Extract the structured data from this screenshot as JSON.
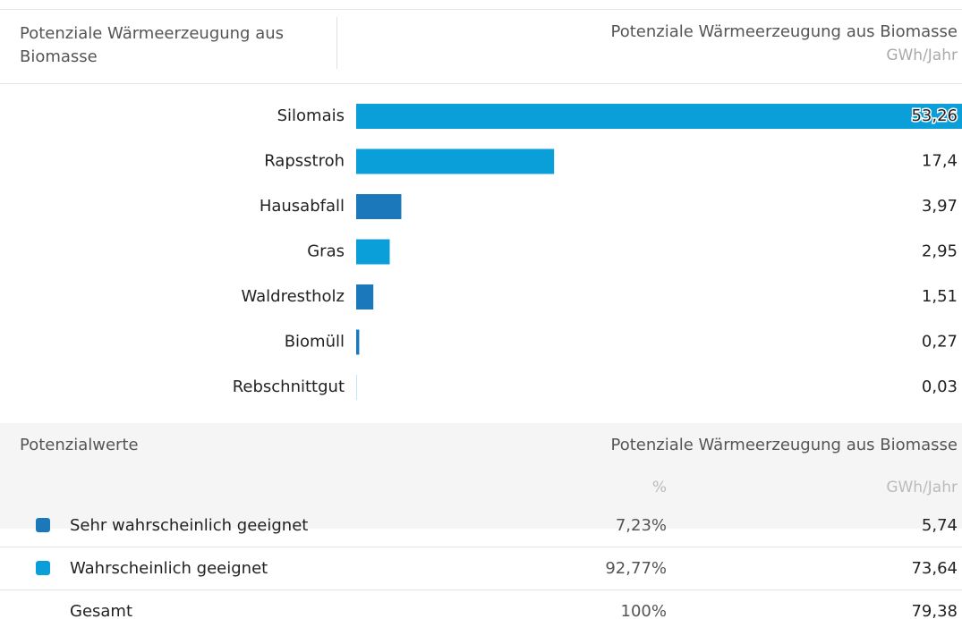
{
  "header": {
    "title": "Potenziale Wärmeerzeugung aus Biomasse",
    "column": "Potenziale Wärmeerzeugung aus Biomasse",
    "unit": "GWh/Jahr"
  },
  "chart_data": {
    "type": "bar",
    "orientation": "horizontal",
    "categories": [
      "Silomais",
      "Rapsstroh",
      "Hausabfall",
      "Gras",
      "Waldrestholz",
      "Biomüll",
      "Rebschnittgut"
    ],
    "values": [
      53.26,
      17.4,
      3.97,
      2.95,
      1.51,
      0.27,
      0.03
    ],
    "value_labels": [
      "53,26",
      "17,4",
      "3,97",
      "2,95",
      "1,51",
      "0,27",
      "0,03"
    ],
    "colors": [
      "#0a9fd9",
      "#0a9fd9",
      "#1b78bb",
      "#0a9fd9",
      "#1b78bb",
      "#1b78bb",
      "#0a9fd9"
    ]
  },
  "table": {
    "title": "Potenzialwerte",
    "column": "Potenziale Wärmeerzeugung aus Biomasse",
    "units": [
      "%",
      "GWh/Jahr"
    ],
    "rows": [
      {
        "color": "#1b78bb",
        "label": "Sehr wahrscheinlich geeignet",
        "percent": "7,23%",
        "value": "5,74"
      },
      {
        "color": "#0a9fd9",
        "label": "Wahrscheinlich geeignet",
        "percent": "92,77%",
        "value": "73,64"
      },
      {
        "label": "Gesamt",
        "percent": "100%",
        "value": "79,38"
      }
    ]
  }
}
